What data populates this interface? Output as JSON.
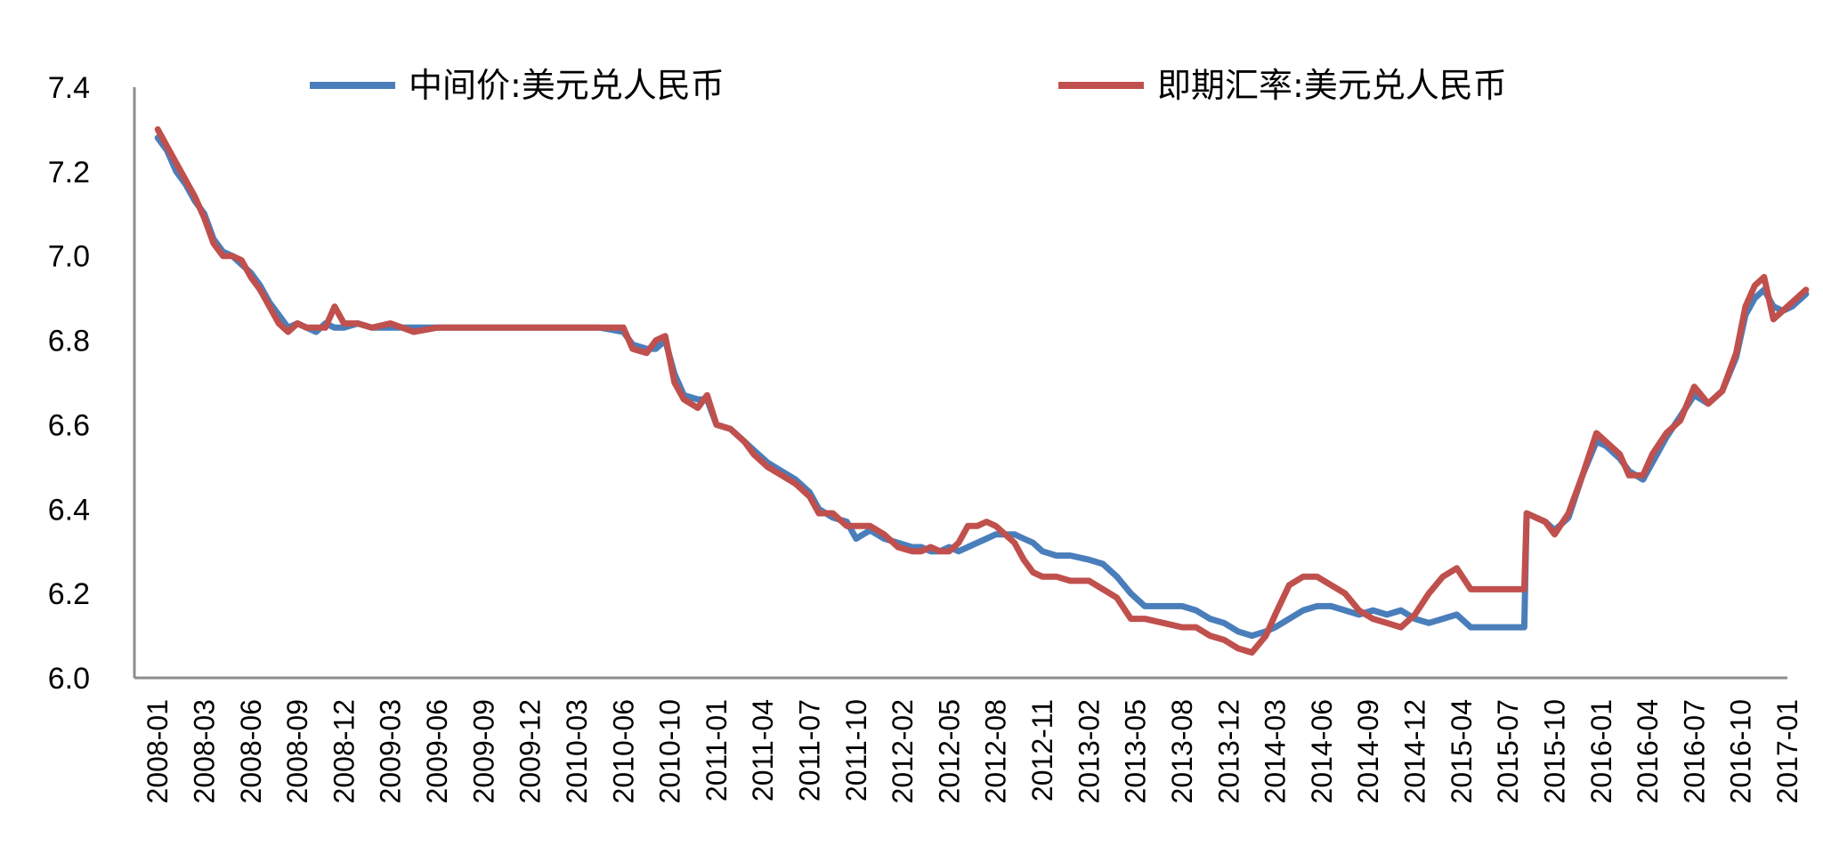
{
  "chart_data": {
    "type": "line",
    "ylim": [
      6.0,
      7.4
    ],
    "yticks": [
      "6.0",
      "6.2",
      "6.4",
      "6.6",
      "6.8",
      "7.0",
      "7.2",
      "7.4"
    ],
    "xticks": [
      "2008-01",
      "2008-03",
      "2008-06",
      "2008-09",
      "2008-12",
      "2009-03",
      "2009-06",
      "2009-09",
      "2009-12",
      "2010-03",
      "2010-06",
      "2010-10",
      "2011-01",
      "2011-04",
      "2011-07",
      "2011-10",
      "2012-02",
      "2012-05",
      "2012-08",
      "2012-11",
      "2013-02",
      "2013-05",
      "2013-08",
      "2013-12",
      "2014-03",
      "2014-06",
      "2014-09",
      "2014-12",
      "2015-04",
      "2015-07",
      "2015-10",
      "2016-01",
      "2016-04",
      "2016-07",
      "2016-10",
      "2017-01"
    ],
    "legend_position": "top",
    "grid": false,
    "series": [
      {
        "name": "中间价:美元兑人民币",
        "color": "#4a7ebb",
        "points": [
          [
            0,
            7.28
          ],
          [
            0.2,
            7.25
          ],
          [
            0.4,
            7.2
          ],
          [
            0.6,
            7.17
          ],
          [
            0.8,
            7.13
          ],
          [
            1.0,
            7.1
          ],
          [
            1.2,
            7.04
          ],
          [
            1.4,
            7.01
          ],
          [
            1.6,
            7.0
          ],
          [
            1.8,
            6.98
          ],
          [
            2.0,
            6.96
          ],
          [
            2.2,
            6.93
          ],
          [
            2.4,
            6.89
          ],
          [
            2.6,
            6.86
          ],
          [
            2.8,
            6.83
          ],
          [
            3.0,
            6.84
          ],
          [
            3.2,
            6.83
          ],
          [
            3.4,
            6.82
          ],
          [
            3.6,
            6.84
          ],
          [
            3.8,
            6.83
          ],
          [
            4.0,
            6.83
          ],
          [
            4.3,
            6.84
          ],
          [
            4.6,
            6.83
          ],
          [
            5.0,
            6.83
          ],
          [
            5.5,
            6.83
          ],
          [
            6.0,
            6.83
          ],
          [
            6.5,
            6.83
          ],
          [
            7.0,
            6.83
          ],
          [
            8.0,
            6.83
          ],
          [
            9.0,
            6.83
          ],
          [
            9.5,
            6.83
          ],
          [
            10.0,
            6.82
          ],
          [
            10.2,
            6.79
          ],
          [
            10.5,
            6.78
          ],
          [
            10.7,
            6.78
          ],
          [
            10.9,
            6.8
          ],
          [
            11.1,
            6.72
          ],
          [
            11.3,
            6.67
          ],
          [
            11.6,
            6.66
          ],
          [
            11.8,
            6.66
          ],
          [
            12.0,
            6.6
          ],
          [
            12.3,
            6.59
          ],
          [
            12.6,
            6.56
          ],
          [
            12.8,
            6.54
          ],
          [
            13.1,
            6.51
          ],
          [
            13.4,
            6.49
          ],
          [
            13.7,
            6.47
          ],
          [
            14.0,
            6.44
          ],
          [
            14.2,
            6.4
          ],
          [
            14.5,
            6.38
          ],
          [
            14.8,
            6.37
          ],
          [
            15.0,
            6.33
          ],
          [
            15.3,
            6.35
          ],
          [
            15.6,
            6.33
          ],
          [
            15.9,
            6.32
          ],
          [
            16.2,
            6.31
          ],
          [
            16.4,
            6.31
          ],
          [
            16.6,
            6.3
          ],
          [
            16.8,
            6.3
          ],
          [
            17.0,
            6.31
          ],
          [
            17.2,
            6.3
          ],
          [
            17.4,
            6.31
          ],
          [
            17.6,
            6.32
          ],
          [
            17.8,
            6.33
          ],
          [
            18.0,
            6.34
          ],
          [
            18.2,
            6.34
          ],
          [
            18.4,
            6.34
          ],
          [
            18.6,
            6.33
          ],
          [
            18.8,
            6.32
          ],
          [
            19.0,
            6.3
          ],
          [
            19.3,
            6.29
          ],
          [
            19.6,
            6.29
          ],
          [
            20.0,
            6.28
          ],
          [
            20.3,
            6.27
          ],
          [
            20.6,
            6.24
          ],
          [
            20.9,
            6.2
          ],
          [
            21.2,
            6.17
          ],
          [
            21.6,
            6.17
          ],
          [
            22.0,
            6.17
          ],
          [
            22.3,
            6.16
          ],
          [
            22.6,
            6.14
          ],
          [
            22.9,
            6.13
          ],
          [
            23.2,
            6.11
          ],
          [
            23.5,
            6.1
          ],
          [
            23.8,
            6.11
          ],
          [
            24.0,
            6.12
          ],
          [
            24.3,
            6.14
          ],
          [
            24.6,
            6.16
          ],
          [
            24.9,
            6.17
          ],
          [
            25.2,
            6.17
          ],
          [
            25.5,
            6.16
          ],
          [
            25.8,
            6.15
          ],
          [
            26.1,
            6.16
          ],
          [
            26.4,
            6.15
          ],
          [
            26.7,
            6.16
          ],
          [
            27.0,
            6.14
          ],
          [
            27.3,
            6.13
          ],
          [
            27.6,
            6.14
          ],
          [
            27.9,
            6.15
          ],
          [
            28.2,
            6.12
          ],
          [
            28.5,
            6.12
          ],
          [
            28.8,
            6.12
          ],
          [
            29.1,
            6.12
          ],
          [
            29.35,
            6.12
          ],
          [
            29.4,
            6.39
          ],
          [
            29.6,
            6.38
          ],
          [
            29.8,
            6.37
          ],
          [
            30.0,
            6.35
          ],
          [
            30.3,
            6.38
          ],
          [
            30.6,
            6.48
          ],
          [
            30.9,
            6.56
          ],
          [
            31.1,
            6.55
          ],
          [
            31.4,
            6.52
          ],
          [
            31.6,
            6.49
          ],
          [
            31.9,
            6.47
          ],
          [
            32.1,
            6.51
          ],
          [
            32.4,
            6.57
          ],
          [
            32.7,
            6.62
          ],
          [
            33.0,
            6.67
          ],
          [
            33.3,
            6.65
          ],
          [
            33.6,
            6.68
          ],
          [
            33.9,
            6.76
          ],
          [
            34.1,
            6.86
          ],
          [
            34.3,
            6.9
          ],
          [
            34.5,
            6.92
          ],
          [
            34.7,
            6.88
          ],
          [
            34.9,
            6.87
          ],
          [
            35.1,
            6.88
          ],
          [
            35.4,
            6.91
          ]
        ]
      },
      {
        "name": "即期汇率:美元兑人民币",
        "color": "#c0504d",
        "points": [
          [
            0,
            7.3
          ],
          [
            0.2,
            7.26
          ],
          [
            0.4,
            7.22
          ],
          [
            0.6,
            7.18
          ],
          [
            0.8,
            7.14
          ],
          [
            1.0,
            7.09
          ],
          [
            1.2,
            7.03
          ],
          [
            1.4,
            7.0
          ],
          [
            1.6,
            7.0
          ],
          [
            1.8,
            6.99
          ],
          [
            2.0,
            6.95
          ],
          [
            2.2,
            6.92
          ],
          [
            2.4,
            6.88
          ],
          [
            2.6,
            6.84
          ],
          [
            2.8,
            6.82
          ],
          [
            3.0,
            6.84
          ],
          [
            3.2,
            6.83
          ],
          [
            3.4,
            6.83
          ],
          [
            3.6,
            6.83
          ],
          [
            3.8,
            6.88
          ],
          [
            4.0,
            6.84
          ],
          [
            4.3,
            6.84
          ],
          [
            4.6,
            6.83
          ],
          [
            5.0,
            6.84
          ],
          [
            5.5,
            6.82
          ],
          [
            6.0,
            6.83
          ],
          [
            6.5,
            6.83
          ],
          [
            7.0,
            6.83
          ],
          [
            8.0,
            6.83
          ],
          [
            9.0,
            6.83
          ],
          [
            9.5,
            6.83
          ],
          [
            10.0,
            6.83
          ],
          [
            10.2,
            6.78
          ],
          [
            10.5,
            6.77
          ],
          [
            10.7,
            6.8
          ],
          [
            10.9,
            6.81
          ],
          [
            11.1,
            6.7
          ],
          [
            11.3,
            6.66
          ],
          [
            11.6,
            6.64
          ],
          [
            11.8,
            6.67
          ],
          [
            12.0,
            6.6
          ],
          [
            12.3,
            6.59
          ],
          [
            12.6,
            6.56
          ],
          [
            12.8,
            6.53
          ],
          [
            13.1,
            6.5
          ],
          [
            13.4,
            6.48
          ],
          [
            13.7,
            6.46
          ],
          [
            14.0,
            6.43
          ],
          [
            14.2,
            6.39
          ],
          [
            14.5,
            6.39
          ],
          [
            14.8,
            6.36
          ],
          [
            15.0,
            6.36
          ],
          [
            15.3,
            6.36
          ],
          [
            15.6,
            6.34
          ],
          [
            15.9,
            6.31
          ],
          [
            16.2,
            6.3
          ],
          [
            16.4,
            6.3
          ],
          [
            16.6,
            6.31
          ],
          [
            16.8,
            6.3
          ],
          [
            17.0,
            6.3
          ],
          [
            17.2,
            6.32
          ],
          [
            17.4,
            6.36
          ],
          [
            17.6,
            6.36
          ],
          [
            17.8,
            6.37
          ],
          [
            18.0,
            6.36
          ],
          [
            18.2,
            6.34
          ],
          [
            18.4,
            6.32
          ],
          [
            18.6,
            6.28
          ],
          [
            18.8,
            6.25
          ],
          [
            19.0,
            6.24
          ],
          [
            19.3,
            6.24
          ],
          [
            19.6,
            6.23
          ],
          [
            20.0,
            6.23
          ],
          [
            20.3,
            6.21
          ],
          [
            20.6,
            6.19
          ],
          [
            20.9,
            6.14
          ],
          [
            21.2,
            6.14
          ],
          [
            21.6,
            6.13
          ],
          [
            22.0,
            6.12
          ],
          [
            22.3,
            6.12
          ],
          [
            22.6,
            6.1
          ],
          [
            22.9,
            6.09
          ],
          [
            23.2,
            6.07
          ],
          [
            23.5,
            6.06
          ],
          [
            23.8,
            6.1
          ],
          [
            24.0,
            6.15
          ],
          [
            24.3,
            6.22
          ],
          [
            24.6,
            6.24
          ],
          [
            24.9,
            6.24
          ],
          [
            25.2,
            6.22
          ],
          [
            25.5,
            6.2
          ],
          [
            25.8,
            6.16
          ],
          [
            26.1,
            6.14
          ],
          [
            26.4,
            6.13
          ],
          [
            26.7,
            6.12
          ],
          [
            27.0,
            6.15
          ],
          [
            27.3,
            6.2
          ],
          [
            27.6,
            6.24
          ],
          [
            27.9,
            6.26
          ],
          [
            28.2,
            6.21
          ],
          [
            28.5,
            6.21
          ],
          [
            28.8,
            6.21
          ],
          [
            29.1,
            6.21
          ],
          [
            29.35,
            6.21
          ],
          [
            29.4,
            6.39
          ],
          [
            29.6,
            6.38
          ],
          [
            29.8,
            6.37
          ],
          [
            30.0,
            6.34
          ],
          [
            30.3,
            6.39
          ],
          [
            30.6,
            6.48
          ],
          [
            30.9,
            6.58
          ],
          [
            31.1,
            6.56
          ],
          [
            31.4,
            6.53
          ],
          [
            31.6,
            6.48
          ],
          [
            31.9,
            6.48
          ],
          [
            32.1,
            6.53
          ],
          [
            32.4,
            6.58
          ],
          [
            32.7,
            6.61
          ],
          [
            33.0,
            6.69
          ],
          [
            33.3,
            6.65
          ],
          [
            33.6,
            6.68
          ],
          [
            33.9,
            6.77
          ],
          [
            34.1,
            6.88
          ],
          [
            34.3,
            6.93
          ],
          [
            34.5,
            6.95
          ],
          [
            34.7,
            6.85
          ],
          [
            34.9,
            6.87
          ],
          [
            35.1,
            6.89
          ],
          [
            35.4,
            6.92
          ]
        ]
      }
    ]
  }
}
